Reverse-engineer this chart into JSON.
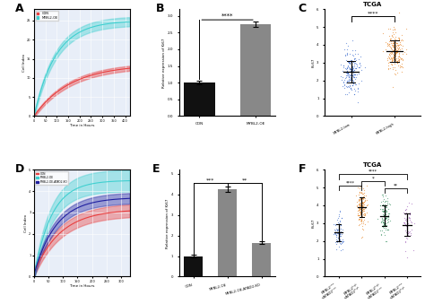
{
  "panel_A": {
    "label": "A",
    "con_color": "#e84040",
    "oe_color": "#40d0d0",
    "legend": [
      "CON",
      "MYBL2-OE"
    ],
    "xlabel": "Time in Hours",
    "ylabel": "Cell Index",
    "xlim": [
      0,
      420
    ],
    "ylim": [
      0,
      28
    ],
    "bg_color": "#e8eef8",
    "grid_color": "#ffffff"
  },
  "panel_B": {
    "label": "B",
    "categories": [
      "CON",
      "MYBL2-OE"
    ],
    "values": [
      1.0,
      2.75
    ],
    "errors": [
      0.06,
      0.07
    ],
    "colors": [
      "#111111",
      "#888888"
    ],
    "ylabel": "Relative expression of Ki67",
    "ylim": [
      0,
      3.2
    ],
    "sig": "****"
  },
  "panel_C": {
    "label": "C",
    "title": "TCGA",
    "ylabel": "Ki-67",
    "group_colors": [
      "#3366cc",
      "#e6821e"
    ],
    "ylim": [
      0,
      6
    ],
    "sig": "****",
    "n1": 200,
    "n2": 220,
    "mean1": 2.5,
    "mean2": 3.6,
    "std1": 0.65,
    "std2": 0.6
  },
  "panel_D": {
    "label": "D",
    "con_color": "#e8404080",
    "oe_color": "#40d0d080",
    "ko_color": "#2020a080",
    "con_line": "#e84040",
    "oe_line": "#40d0d0",
    "ko_line": "#2020a0",
    "legend": [
      "CON",
      "MYBL2-OE",
      "MYBL2-OE-ATAD2-KO"
    ],
    "xlabel": "Time in Hours",
    "ylabel": "Cell Index",
    "xlim": [
      0,
      330
    ],
    "ylim": [
      0,
      5
    ],
    "bg_color": "#e8eef8",
    "grid_color": "#ffffff"
  },
  "panel_E": {
    "label": "E",
    "categories": [
      "CON",
      "MYBL2-OE",
      "MYBL2-OE-ATAD2-KO"
    ],
    "values": [
      1.0,
      4.25,
      1.65
    ],
    "errors": [
      0.06,
      0.12,
      0.06
    ],
    "colors": [
      "#111111",
      "#888888",
      "#888888"
    ],
    "ylabel": "Relative expression of Ki67",
    "ylim": [
      0,
      5.2
    ],
    "sig1": "***",
    "sig2": "**"
  },
  "panel_F": {
    "label": "F",
    "title": "TCGA",
    "ylabel": "Ki-67",
    "group_colors": [
      "#3366cc",
      "#e6821e",
      "#2e8b57",
      "#9b59b6"
    ],
    "ylim": [
      0,
      6
    ],
    "group_ns": [
      80,
      160,
      110,
      55
    ],
    "group_means": [
      2.3,
      3.8,
      3.4,
      3.0
    ],
    "group_stds": [
      0.55,
      0.55,
      0.55,
      0.65
    ]
  }
}
